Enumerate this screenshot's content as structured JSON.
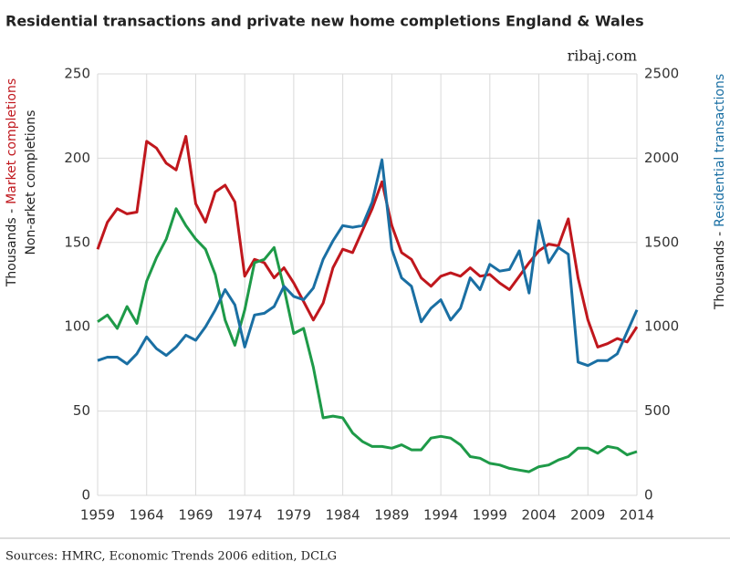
{
  "chart_data": {
    "type": "line",
    "title": "Residential transactions and private new home completions England & Wales",
    "subtitle": "ribaj.com",
    "source": "Sources: HMRC, Economic Trends 2006 edition, DCLG",
    "ylabel_prefix": "Thousands -",
    "ylabel": "Market completions",
    "ylabel_inner": "Non-arket completions",
    "y2label_prefix": "Thousands -",
    "y2label": "Residential transactions",
    "xlim": [
      1959,
      2014
    ],
    "xticks": [
      1959,
      1964,
      1969,
      1974,
      1979,
      1984,
      1989,
      1994,
      1999,
      2004,
      2009,
      2014
    ],
    "ylim": [
      0,
      250
    ],
    "yticks": [
      0,
      50,
      100,
      150,
      200,
      250
    ],
    "y2lim": [
      0,
      2500
    ],
    "y2ticks": [
      0,
      500,
      1000,
      1500,
      2000,
      2500
    ],
    "grid": true,
    "x": [
      1959,
      1960,
      1961,
      1962,
      1963,
      1964,
      1965,
      1966,
      1967,
      1968,
      1969,
      1970,
      1971,
      1972,
      1973,
      1974,
      1975,
      1976,
      1977,
      1978,
      1979,
      1980,
      1981,
      1982,
      1983,
      1984,
      1985,
      1986,
      1987,
      1988,
      1989,
      1990,
      1991,
      1992,
      1993,
      1994,
      1995,
      1996,
      1997,
      1998,
      1999,
      2000,
      2001,
      2002,
      2003,
      2004,
      2005,
      2006,
      2007,
      2008,
      2009,
      2010,
      2011,
      2012,
      2013,
      2014
    ],
    "series": [
      {
        "name": "Market completions",
        "color": "#c0171d",
        "axis": "y",
        "values": [
          146,
          162,
          170,
          167,
          168,
          210,
          206,
          197,
          193,
          213,
          173,
          162,
          180,
          184,
          174,
          130,
          140,
          138,
          129,
          135,
          126,
          115,
          104,
          114,
          135,
          146,
          144,
          157,
          170,
          186,
          160,
          144,
          140,
          129,
          124,
          130,
          132,
          130,
          135,
          130,
          131,
          126,
          122,
          130,
          138,
          145,
          149,
          148,
          164,
          129,
          104,
          88,
          90,
          93,
          91,
          100
        ]
      },
      {
        "name": "Non-arket completions",
        "color": "#1e9a48",
        "axis": "y",
        "values": [
          103,
          107,
          99,
          112,
          102,
          127,
          141,
          152,
          170,
          160,
          152,
          146,
          131,
          104,
          89,
          110,
          138,
          140,
          147,
          123,
          96,
          99,
          76,
          46,
          47,
          46,
          37,
          32,
          29,
          29,
          28,
          30,
          27,
          27,
          34,
          35,
          34,
          30,
          23,
          22,
          19,
          18,
          16,
          15,
          14,
          17,
          18,
          21,
          23,
          28,
          28,
          25,
          29,
          28,
          24,
          26
        ]
      },
      {
        "name": "Residential transactions",
        "color": "#1a6fa3",
        "axis": "y2",
        "values": [
          800,
          820,
          820,
          780,
          840,
          940,
          870,
          830,
          880,
          950,
          920,
          1000,
          1100,
          1220,
          1130,
          880,
          1070,
          1080,
          1120,
          1240,
          1180,
          1160,
          1230,
          1400,
          1510,
          1600,
          1590,
          1600,
          1740,
          1990,
          1460,
          1290,
          1240,
          1030,
          1110,
          1160,
          1040,
          1110,
          1290,
          1220,
          1370,
          1330,
          1340,
          1450,
          1200,
          1630,
          1380,
          1470,
          1430,
          790,
          770,
          800,
          800,
          840,
          970,
          1100
        ]
      }
    ]
  }
}
